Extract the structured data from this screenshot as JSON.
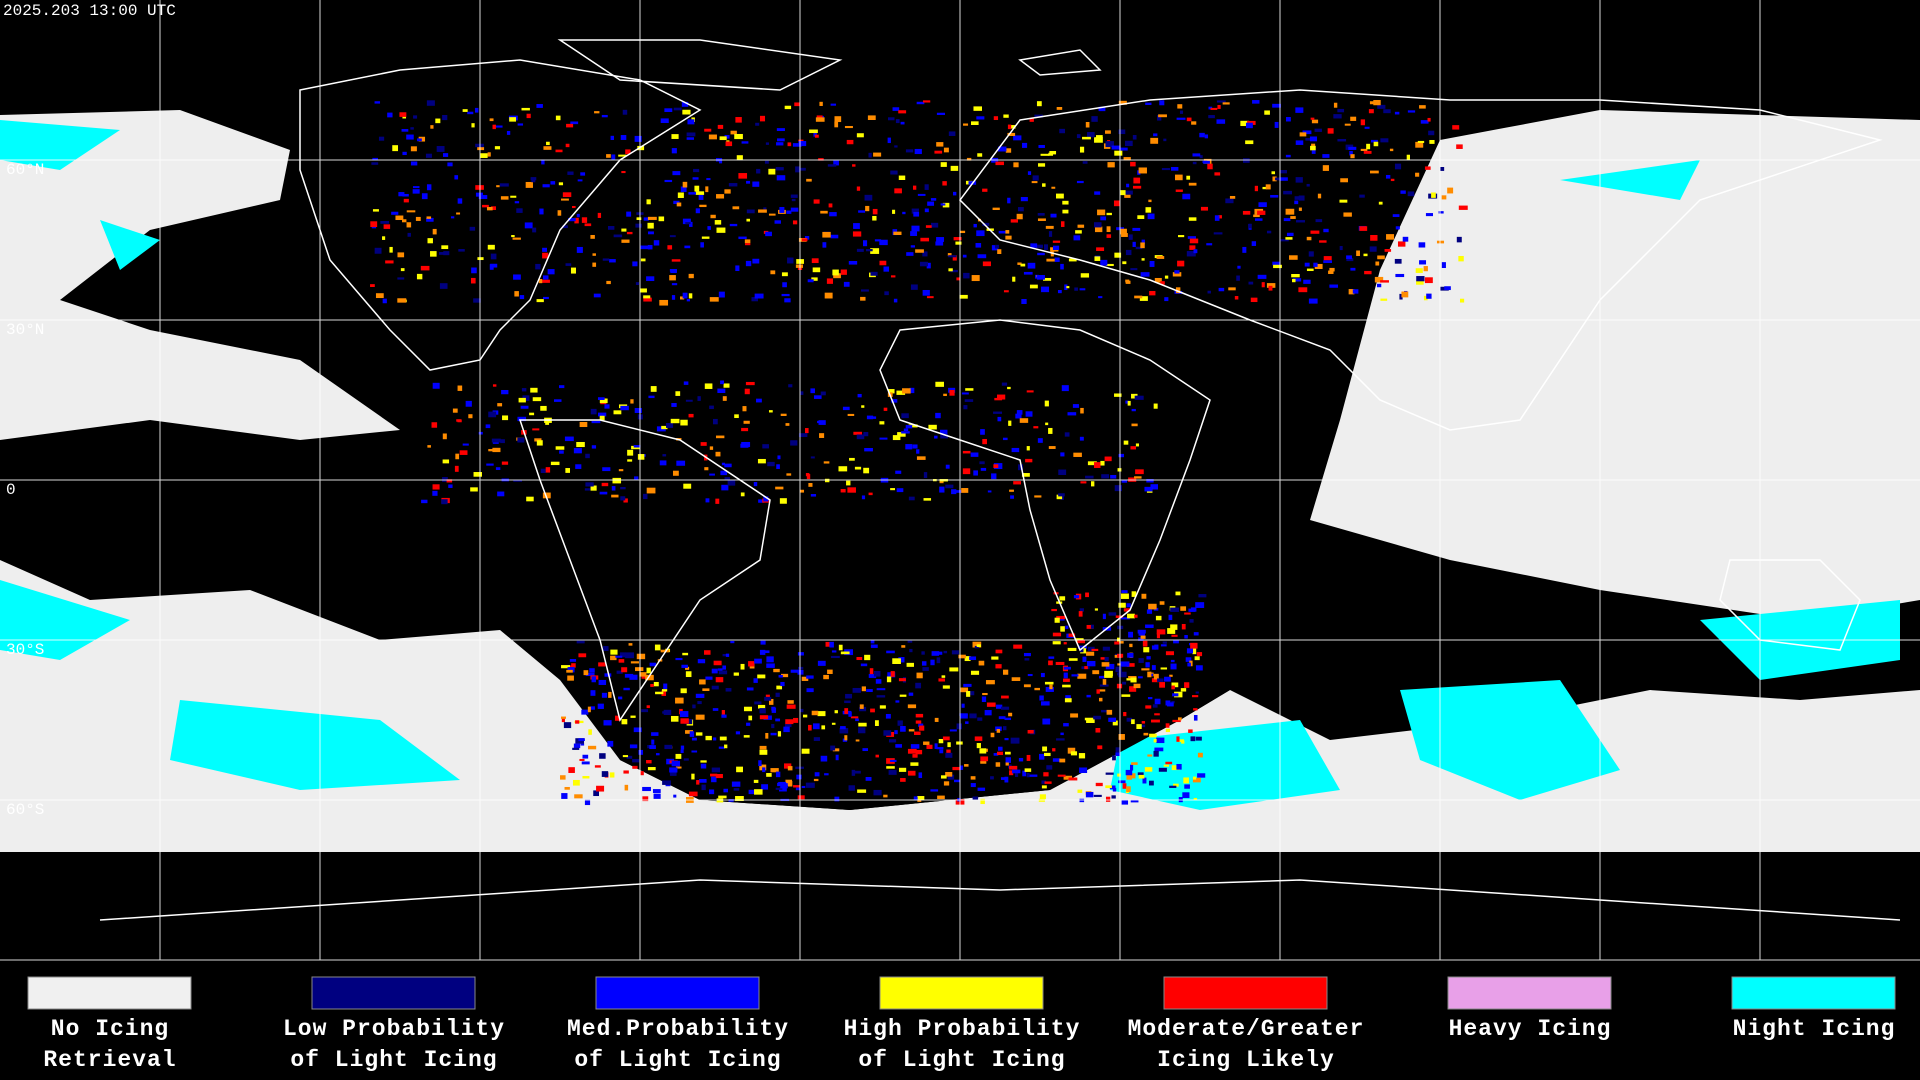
{
  "timestamp": "2025.203 13:00 UTC",
  "latitude_labels": [
    "60°N",
    "30°N",
    "0",
    "30°S",
    "60°S"
  ],
  "legend": {
    "items": [
      {
        "lines": [
          "No Icing",
          "Retrieval"
        ],
        "color": "#f0f0f0"
      },
      {
        "lines": [
          "Low Probability",
          "of Light Icing"
        ],
        "color": "#000080"
      },
      {
        "lines": [
          "Med.Probability",
          "of Light Icing"
        ],
        "color": "#0000ff"
      },
      {
        "lines": [
          "High Probability",
          "of Light Icing"
        ],
        "color": "#ffff00"
      },
      {
        "lines": [
          "Moderate/Greater",
          "Icing Likely"
        ],
        "color": "#ff0000"
      },
      {
        "lines": [
          "Heavy Icing"
        ],
        "color": "#e8a0e8"
      },
      {
        "lines": [
          "Night Icing"
        ],
        "color": "#00ffff"
      }
    ]
  }
}
